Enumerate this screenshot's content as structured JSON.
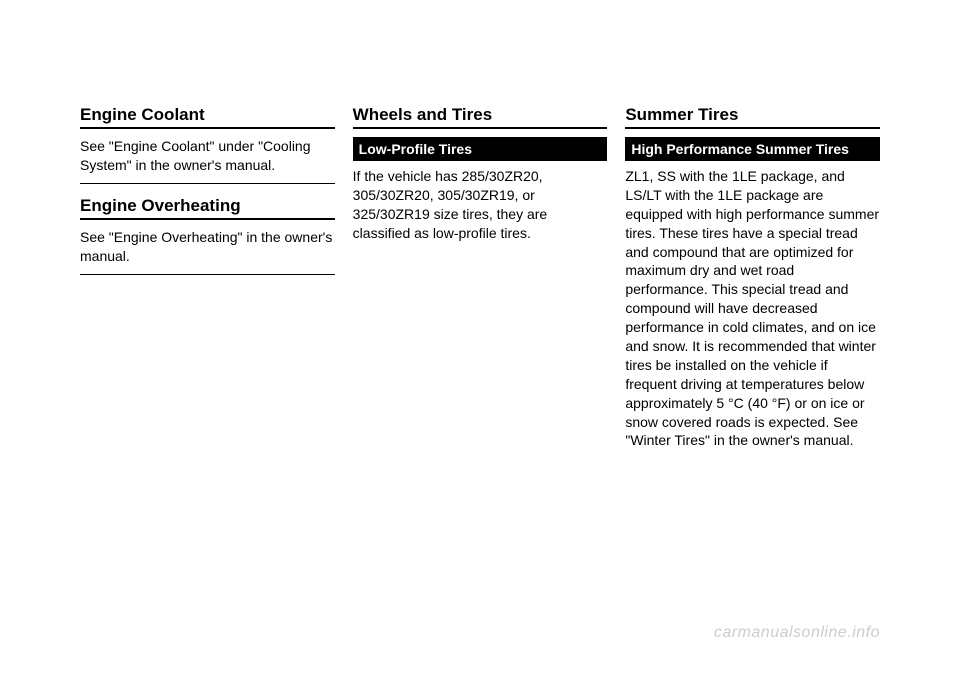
{
  "col1": {
    "engineCoolant": {
      "heading": "Engine Coolant",
      "body": "See \"Engine Coolant\" under \"Cooling System\" in the owner's manual."
    },
    "engineOverheating": {
      "heading": "Engine Overheating",
      "body": "See \"Engine Overheating\" in the owner's manual."
    }
  },
  "col2": {
    "wheelsTires": {
      "heading": "Wheels and Tires"
    },
    "lowProfile": {
      "subheading": "Low-Profile Tires",
      "body": "If the vehicle has 285/30ZR20, 305/30ZR20, 305/30ZR19, or 325/30ZR19 size tires, they are classified as low-profile tires."
    }
  },
  "col3": {
    "summerTires": {
      "heading": "Summer Tires",
      "subheading": "High Performance Summer Tires",
      "body": "ZL1, SS with the 1LE package, and LS/LT with the 1LE package are equipped with high performance summer tires. These tires have a special tread and compound that are optimized for maximum dry and wet road performance. This special tread and compound will have decreased performance in cold climates, and on ice and snow. It is recommended that winter tires be installed on the vehicle if frequent driving at temperatures below approximately 5 °C (40 °F) or on ice or snow covered roads is expected. See \"Winter Tires\" in the owner's manual."
    }
  },
  "watermark": "carmanualsonline.info",
  "colors": {
    "text": "#000000",
    "background": "#ffffff",
    "watermark": "#cccccc",
    "rule": "#000000"
  }
}
